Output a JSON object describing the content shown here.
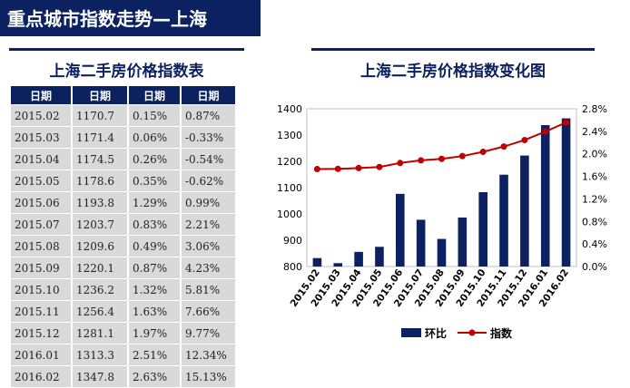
{
  "header": {
    "title": "重点城市指数走势—上海"
  },
  "table": {
    "title": "上海二手房价格指数表",
    "columns": [
      "日期",
      "日期",
      "日期",
      "日期"
    ],
    "rows": [
      [
        "2015.02",
        "1170.7",
        "0.15%",
        "0.87%"
      ],
      [
        "2015.03",
        "1171.4",
        "0.06%",
        "-0.33%"
      ],
      [
        "2015.04",
        "1174.5",
        "0.26%",
        "-0.54%"
      ],
      [
        "2015.05",
        "1178.6",
        "0.35%",
        "-0.62%"
      ],
      [
        "2015.06",
        "1193.8",
        "1.29%",
        "0.99%"
      ],
      [
        "2015.07",
        "1203.7",
        "0.83%",
        "2.21%"
      ],
      [
        "2015.08",
        "1209.6",
        "0.49%",
        "3.06%"
      ],
      [
        "2015.09",
        "1220.1",
        "0.87%",
        "4.23%"
      ],
      [
        "2015.10",
        "1236.2",
        "1.32%",
        "5.81%"
      ],
      [
        "2015.11",
        "1256.4",
        "1.63%",
        "7.66%"
      ],
      [
        "2015.12",
        "1281.1",
        "1.97%",
        "9.77%"
      ],
      [
        "2016.01",
        "1313.3",
        "2.51%",
        "12.34%"
      ],
      [
        "2016.02",
        "1347.8",
        "2.63%",
        "15.13%"
      ]
    ]
  },
  "chart_data": {
    "type": "bar",
    "title": "上海二手房价格指数变化图",
    "categories": [
      "2015.02",
      "2015.03",
      "2015.04",
      "2015.05",
      "2015.06",
      "2015.07",
      "2015.08",
      "2015.09",
      "2015.10",
      "2015.11",
      "2015.12",
      "2016.01",
      "2016.02"
    ],
    "series": [
      {
        "name": "环比",
        "type": "bar",
        "axis": "right",
        "color": "#0c2160",
        "values": [
          0.15,
          0.06,
          0.26,
          0.35,
          1.29,
          0.83,
          0.49,
          0.87,
          1.32,
          1.63,
          1.97,
          2.51,
          2.63
        ]
      },
      {
        "name": "指数",
        "type": "line",
        "axis": "left",
        "color": "#c00000",
        "values": [
          1170.7,
          1171.4,
          1174.5,
          1178.6,
          1193.8,
          1203.7,
          1209.6,
          1220.1,
          1236.2,
          1256.4,
          1281.1,
          1313.3,
          1347.8
        ]
      }
    ],
    "y_left": {
      "min": 800,
      "max": 1400,
      "ticks": [
        "800",
        "900",
        "1000",
        "1100",
        "1200",
        "1300",
        "1400"
      ]
    },
    "y_right": {
      "min": 0,
      "max": 2.8,
      "ticks": [
        "0.0%",
        "0.4%",
        "0.8%",
        "1.2%",
        "1.6%",
        "2.0%",
        "2.4%",
        "2.8%"
      ]
    },
    "grid": false,
    "legend_position": "bottom"
  }
}
